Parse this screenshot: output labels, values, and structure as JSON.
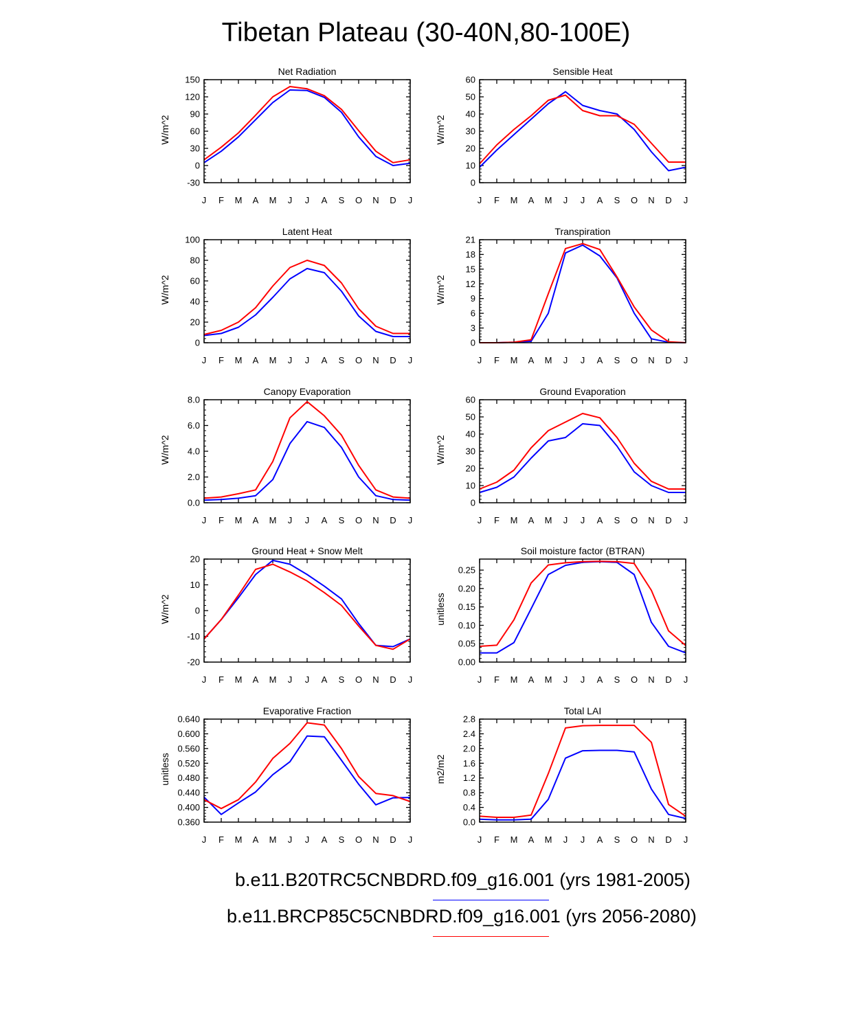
{
  "title": "Tibetan Plateau (30-40N,80-100E)",
  "colors": {
    "hist": "#0000ff",
    "future": "#ff0000",
    "axis": "#000000"
  },
  "legend": [
    {
      "label": "b.e11.B20TRC5CNBDRD.f09_g16.001 (yrs 1981-2005)",
      "color": "#0000ff"
    },
    {
      "label": "b.e11.BRCP85C5CNBDRD.f09_g16.001 (yrs 2056-2080)",
      "color": "#ff0000"
    }
  ],
  "chart_data": [
    {
      "type": "line",
      "title": "Net Radiation",
      "ylabel": "W/m^2",
      "ylim": [
        -30,
        150
      ],
      "yticks": [
        "-30",
        "0",
        "30",
        "60",
        "90",
        "120",
        "150"
      ],
      "categories": [
        "J",
        "F",
        "M",
        "A",
        "M",
        "J",
        "J",
        "A",
        "S",
        "O",
        "N",
        "D",
        "J"
      ],
      "series": [
        {
          "name": "b.e11.B20TRC5CNBDRD.f09_g16.001 (yrs 1981-2005)",
          "color": "#0000ff",
          "values": [
            5,
            25,
            50,
            80,
            110,
            132,
            131,
            119,
            93,
            50,
            16,
            0,
            4
          ]
        },
        {
          "name": "b.e11.BRCP85C5CNBDRD.f09_g16.001 (yrs 2056-2080)",
          "color": "#ff0000",
          "values": [
            10,
            32,
            57,
            88,
            120,
            138,
            134,
            122,
            98,
            61,
            25,
            5,
            10
          ]
        }
      ]
    },
    {
      "type": "line",
      "title": "Sensible Heat",
      "ylabel": "W/m^2",
      "ylim": [
        0,
        60
      ],
      "yticks": [
        "0",
        "10",
        "20",
        "30",
        "40",
        "50",
        "60"
      ],
      "categories": [
        "J",
        "F",
        "M",
        "A",
        "M",
        "J",
        "J",
        "A",
        "S",
        "O",
        "N",
        "D",
        "J"
      ],
      "series": [
        {
          "name": "b.e11.B20TRC5CNBDRD.f09_g16.001 (yrs 1981-2005)",
          "color": "#0000ff",
          "values": [
            9,
            19,
            28,
            37,
            46,
            53,
            45,
            42,
            40,
            31,
            18,
            7,
            9
          ]
        },
        {
          "name": "b.e11.BRCP85C5CNBDRD.f09_g16.001 (yrs 2056-2080)",
          "color": "#ff0000",
          "values": [
            11,
            22,
            31,
            39,
            48,
            51,
            42,
            39,
            39,
            34,
            23,
            12,
            12
          ]
        }
      ]
    },
    {
      "type": "line",
      "title": "Latent Heat",
      "ylabel": "W/m^2",
      "ylim": [
        0,
        100
      ],
      "yticks": [
        "0",
        "20",
        "40",
        "60",
        "80",
        "100"
      ],
      "categories": [
        "J",
        "F",
        "M",
        "A",
        "M",
        "J",
        "J",
        "A",
        "S",
        "O",
        "N",
        "D",
        "J"
      ],
      "series": [
        {
          "name": "b.e11.B20TRC5CNBDRD.f09_g16.001 (yrs 1981-2005)",
          "color": "#0000ff",
          "values": [
            7,
            9,
            15,
            27,
            44,
            62,
            72,
            68,
            50,
            26,
            11,
            6,
            6
          ]
        },
        {
          "name": "b.e11.BRCP85C5CNBDRD.f09_g16.001 (yrs 2056-2080)",
          "color": "#ff0000",
          "values": [
            8,
            12,
            20,
            34,
            55,
            73,
            80,
            75,
            58,
            33,
            16,
            9,
            9
          ]
        }
      ]
    },
    {
      "type": "line",
      "title": "Transpiration",
      "ylabel": "W/m^2",
      "ylim": [
        0,
        21
      ],
      "yticks": [
        "0",
        "3",
        "6",
        "9",
        "12",
        "15",
        "18",
        "21"
      ],
      "categories": [
        "J",
        "F",
        "M",
        "A",
        "M",
        "J",
        "J",
        "A",
        "S",
        "O",
        "N",
        "D",
        "J"
      ],
      "series": [
        {
          "name": "b.e11.B20TRC5CNBDRD.f09_g16.001 (yrs 1981-2005)",
          "color": "#0000ff",
          "values": [
            0,
            0,
            0.1,
            0.3,
            6,
            18.3,
            19.9,
            17.7,
            13.2,
            6,
            0.8,
            0.1,
            0
          ]
        },
        {
          "name": "b.e11.BRCP85C5CNBDRD.f09_g16.001 (yrs 2056-2080)",
          "color": "#ff0000",
          "values": [
            0,
            0,
            0.1,
            0.6,
            10,
            19.2,
            20.2,
            19.0,
            13.4,
            7.3,
            2.6,
            0.2,
            0
          ]
        }
      ]
    },
    {
      "type": "line",
      "title": "Canopy Evaporation",
      "ylabel": "W/m^2",
      "ylim": [
        0,
        8
      ],
      "yticks": [
        "0.0",
        "2.0",
        "4.0",
        "6.0",
        "8.0"
      ],
      "categories": [
        "J",
        "F",
        "M",
        "A",
        "M",
        "J",
        "J",
        "A",
        "S",
        "O",
        "N",
        "D",
        "J"
      ],
      "series": [
        {
          "name": "b.e11.B20TRC5CNBDRD.f09_g16.001 (yrs 1981-2005)",
          "color": "#0000ff",
          "values": [
            0.2,
            0.25,
            0.35,
            0.55,
            1.8,
            4.6,
            6.3,
            5.85,
            4.3,
            2.0,
            0.55,
            0.25,
            0.2
          ]
        },
        {
          "name": "b.e11.BRCP85C5CNBDRD.f09_g16.001 (yrs 2056-2080)",
          "color": "#ff0000",
          "values": [
            0.35,
            0.45,
            0.7,
            1.0,
            3.2,
            6.6,
            7.85,
            6.75,
            5.25,
            2.9,
            1.0,
            0.45,
            0.35
          ]
        }
      ]
    },
    {
      "type": "line",
      "title": "Ground Evaporation",
      "ylabel": "W/m^2",
      "ylim": [
        0,
        60
      ],
      "yticks": [
        "0",
        "10",
        "20",
        "30",
        "40",
        "50",
        "60"
      ],
      "categories": [
        "J",
        "F",
        "M",
        "A",
        "M",
        "J",
        "J",
        "A",
        "S",
        "O",
        "N",
        "D",
        "J"
      ],
      "series": [
        {
          "name": "b.e11.B20TRC5CNBDRD.f09_g16.001 (yrs 1981-2005)",
          "color": "#0000ff",
          "values": [
            6,
            9,
            15,
            26,
            36,
            38,
            46,
            45,
            33,
            18,
            10,
            6,
            6
          ]
        },
        {
          "name": "b.e11.BRCP85C5CNBDRD.f09_g16.001 (yrs 2056-2080)",
          "color": "#ff0000",
          "values": [
            8,
            12,
            19,
            32,
            42,
            47,
            52,
            49.5,
            38,
            23,
            12.5,
            8,
            8
          ]
        }
      ]
    },
    {
      "type": "line",
      "title": "Ground Heat + Snow Melt",
      "ylabel": "W/m^2",
      "ylim": [
        -20,
        20
      ],
      "yticks": [
        "-20",
        "-10",
        "0",
        "10",
        "20"
      ],
      "categories": [
        "J",
        "F",
        "M",
        "A",
        "M",
        "J",
        "J",
        "A",
        "S",
        "O",
        "N",
        "D",
        "J"
      ],
      "series": [
        {
          "name": "b.e11.B20TRC5CNBDRD.f09_g16.001 (yrs 1981-2005)",
          "color": "#0000ff",
          "values": [
            -11,
            -3.5,
            5,
            14,
            19.5,
            18,
            14,
            9.5,
            4.5,
            -5,
            -13.5,
            -14,
            -11
          ]
        },
        {
          "name": "b.e11.BRCP85C5CNBDRD.f09_g16.001 (yrs 2056-2080)",
          "color": "#ff0000",
          "values": [
            -11,
            -3.5,
            6,
            16,
            18,
            15,
            11.5,
            7,
            2,
            -6,
            -13.5,
            -15,
            -11
          ]
        }
      ]
    },
    {
      "type": "line",
      "title": "Soil moisture factor (BTRAN)",
      "ylabel": "unitless",
      "ylim": [
        0,
        0.28
      ],
      "yticks": [
        "0.00",
        "0.05",
        "0.10",
        "0.15",
        "0.20",
        "0.25"
      ],
      "ytickvals": [
        0,
        0.05,
        0.1,
        0.15,
        0.2,
        0.25
      ],
      "categories": [
        "J",
        "F",
        "M",
        "A",
        "M",
        "J",
        "J",
        "A",
        "S",
        "O",
        "N",
        "D",
        "J"
      ],
      "series": [
        {
          "name": "b.e11.B20TRC5CNBDRD.f09_g16.001 (yrs 1981-2005)",
          "color": "#0000ff",
          "values": [
            0.025,
            0.025,
            0.053,
            0.145,
            0.238,
            0.263,
            0.271,
            0.273,
            0.271,
            0.238,
            0.108,
            0.043,
            0.025
          ]
        },
        {
          "name": "b.e11.BRCP85C5CNBDRD.f09_g16.001 (yrs 2056-2080)",
          "color": "#ff0000",
          "values": [
            0.043,
            0.046,
            0.115,
            0.215,
            0.264,
            0.27,
            0.273,
            0.274,
            0.273,
            0.268,
            0.195,
            0.085,
            0.045
          ]
        }
      ]
    },
    {
      "type": "line",
      "title": "Evaporative Fraction",
      "ylabel": "unitless",
      "ylim": [
        0.36,
        0.64
      ],
      "yticks": [
        "0.360",
        "0.400",
        "0.440",
        "0.480",
        "0.520",
        "0.560",
        "0.600",
        "0.640"
      ],
      "categories": [
        "J",
        "F",
        "M",
        "A",
        "M",
        "J",
        "J",
        "A",
        "S",
        "O",
        "N",
        "D",
        "J"
      ],
      "series": [
        {
          "name": "b.e11.B20TRC5CNBDRD.f09_g16.001 (yrs 1981-2005)",
          "color": "#0000ff",
          "values": [
            0.428,
            0.381,
            0.412,
            0.442,
            0.489,
            0.524,
            0.594,
            0.592,
            0.528,
            0.463,
            0.407,
            0.426,
            0.427
          ]
        },
        {
          "name": "b.e11.BRCP85C5CNBDRD.f09_g16.001 (yrs 2056-2080)",
          "color": "#ff0000",
          "values": [
            0.421,
            0.397,
            0.421,
            0.469,
            0.533,
            0.574,
            0.63,
            0.624,
            0.56,
            0.484,
            0.438,
            0.432,
            0.416
          ]
        }
      ]
    },
    {
      "type": "line",
      "title": "Total LAI",
      "ylabel": "m2/m2",
      "ylim": [
        0,
        2.8
      ],
      "yticks": [
        "0.0",
        "0.4",
        "0.8",
        "1.2",
        "1.6",
        "2.0",
        "2.4",
        "2.8"
      ],
      "categories": [
        "J",
        "F",
        "M",
        "A",
        "M",
        "J",
        "J",
        "A",
        "S",
        "O",
        "N",
        "D",
        "J"
      ],
      "series": [
        {
          "name": "b.e11.B20TRC5CNBDRD.f09_g16.001 (yrs 1981-2005)",
          "color": "#0000ff",
          "values": [
            0.08,
            0.06,
            0.06,
            0.08,
            0.62,
            1.74,
            1.94,
            1.95,
            1.95,
            1.91,
            0.9,
            0.21,
            0.1
          ]
        },
        {
          "name": "b.e11.BRCP85C5CNBDRD.f09_g16.001 (yrs 2056-2080)",
          "color": "#ff0000",
          "values": [
            0.16,
            0.13,
            0.13,
            0.19,
            1.32,
            2.56,
            2.62,
            2.63,
            2.63,
            2.63,
            2.17,
            0.48,
            0.16
          ]
        }
      ]
    }
  ]
}
